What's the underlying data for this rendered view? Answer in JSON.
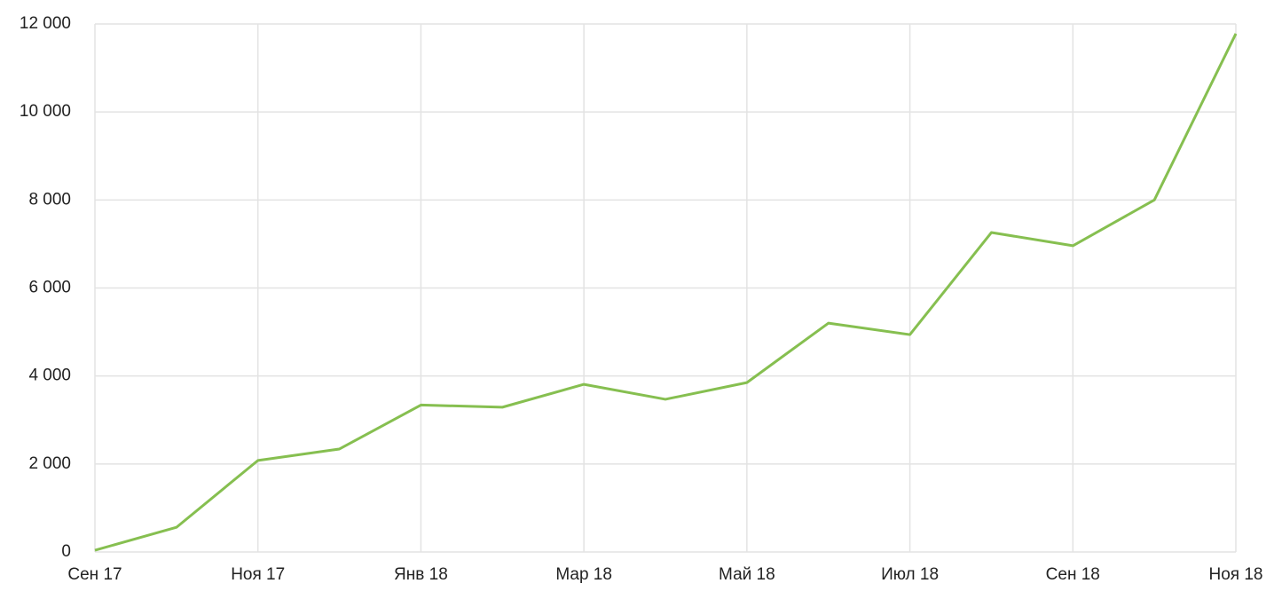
{
  "chart_data": {
    "type": "line",
    "categories": [
      "Сен 17",
      null,
      "Ноя 17",
      null,
      "Янв 18",
      null,
      "Мар 18",
      null,
      "Май 18",
      null,
      "Июл 18",
      null,
      "Сен 18",
      null,
      "Ноя 18"
    ],
    "series": [
      {
        "color": "#86bf50",
        "values": [
          40,
          560,
          2080,
          2340,
          3340,
          3290,
          3810,
          3470,
          3850,
          5200,
          4940,
          7260,
          6960,
          8000,
          11780
        ]
      }
    ],
    "ylim": [
      0,
      12000
    ],
    "yticks": [
      0,
      {
        "value": 2000,
        "label": "2 000"
      },
      {
        "value": 4000,
        "label": "4 000"
      },
      {
        "value": 6000,
        "label": "6 000"
      },
      {
        "value": 8000,
        "label": "8 000"
      },
      {
        "value": 10000,
        "label": "10 000"
      },
      {
        "value": 12000,
        "label": "12 000"
      }
    ],
    "grid": true
  }
}
